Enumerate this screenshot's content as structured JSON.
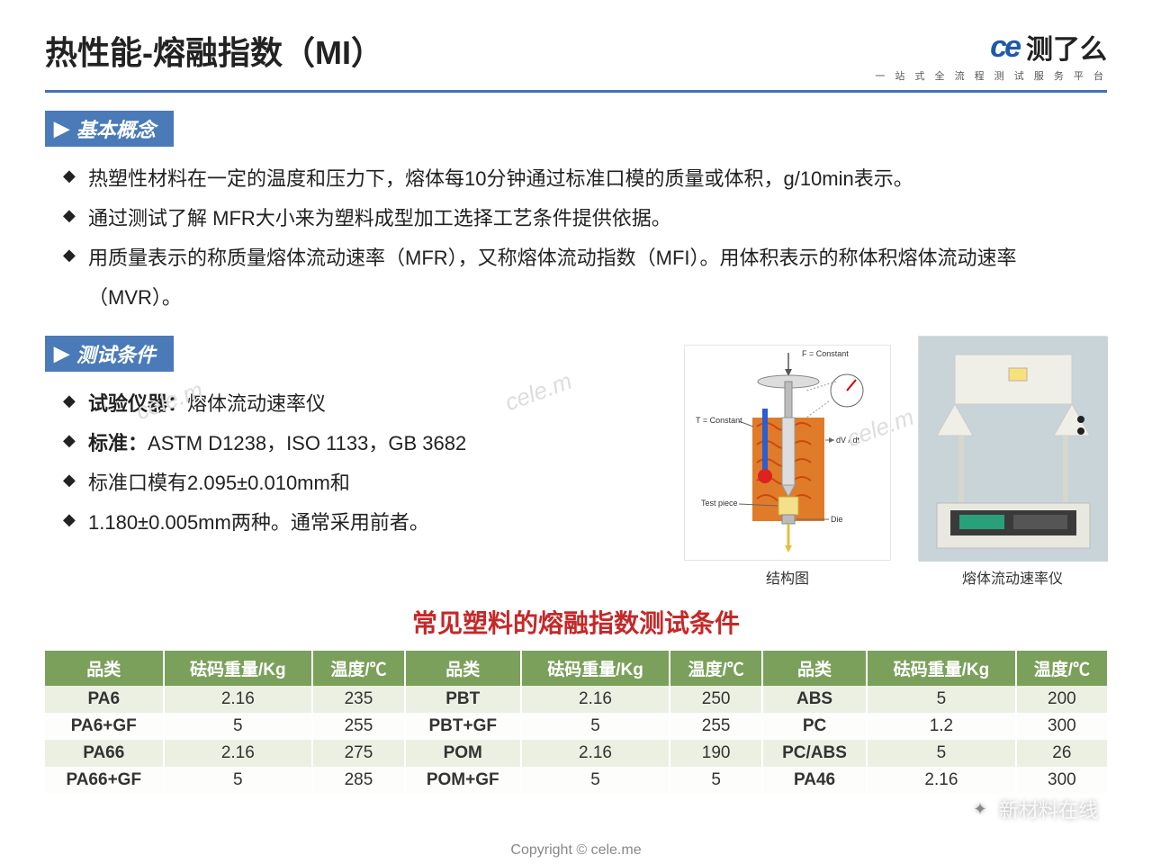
{
  "header": {
    "title": "热性能-熔融指数（MI）",
    "logo_mark": "ce",
    "logo_text": "测了么",
    "logo_subtitle": "一 站 式 全 流 程 测 试 服 务 平 台"
  },
  "section1": {
    "tag": "基本概念",
    "bullets": [
      "热塑性材料在一定的温度和压力下，熔体每10分钟通过标准口模的质量或体积，g/10min表示。",
      "通过测试了解 MFR大小来为塑料成型加工选择工艺条件提供依据。",
      "用质量表示的称质量熔体流动速率（MFR），又称熔体流动指数（MFI）。用体积表示的称体积熔体流动速率（MVR）。"
    ]
  },
  "section2": {
    "tag": "测试条件",
    "bullets": [
      {
        "label": "试验仪器：",
        "text": "熔体流动速率仪",
        "bold_label": true
      },
      {
        "label": "标准：",
        "text": "ASTM D1238，ISO 1133，GB 3682",
        "bold_label": true
      },
      {
        "label": "",
        "text": "标准口模有2.095±0.010mm和",
        "bold_label": false
      },
      {
        "label": "",
        "text": "1.180±0.005mm两种。通常采用前者。",
        "bold_label": false
      }
    ]
  },
  "diagram": {
    "labels": {
      "top": "F = Constant",
      "left": "T = Constant",
      "right": "dV / dt",
      "sample": "Test piece",
      "die": "Die"
    },
    "caption": "结构图",
    "colors": {
      "body": "#e07b2a",
      "heat_coil": "#c94a10",
      "thermo_blue": "#2a5fd0",
      "thermo_red": "#d22",
      "piston": "#bcbcbc",
      "sample": "#f4e08a"
    }
  },
  "photo": {
    "caption": "熔体流动速率仪",
    "colors": {
      "bg": "#c8d4d8",
      "frame": "#efefe7",
      "panel": "#3a3a3a"
    }
  },
  "table": {
    "title": "常见塑料的熔融指数测试条件",
    "header_bg": "#7ba05b",
    "row_odd_bg": "#ecf0e3",
    "row_even_bg": "#fdfdfb",
    "columns": [
      "品类",
      "砝码重量/Kg",
      "温度/℃",
      "品类",
      "砝码重量/Kg",
      "温度/℃",
      "品类",
      "砝码重量/Kg",
      "温度/℃"
    ],
    "rows": [
      [
        "PA6",
        "2.16",
        "235",
        "PBT",
        "2.16",
        "250",
        "ABS",
        "5",
        "200"
      ],
      [
        "PA6+GF",
        "5",
        "255",
        "PBT+GF",
        "5",
        "255",
        "PC",
        "1.2",
        "300"
      ],
      [
        "PA66",
        "2.16",
        "275",
        "POM",
        "2.16",
        "190",
        "PC/ABS",
        "5",
        "26"
      ],
      [
        "PA66+GF",
        "5",
        "285",
        "POM+GF",
        "5",
        "5",
        "PA46",
        "2.16",
        "300"
      ]
    ]
  },
  "footer": "Copyright © cele.me",
  "watermark_bottom": "新材料在线",
  "watermarks_cele": "cele.m"
}
